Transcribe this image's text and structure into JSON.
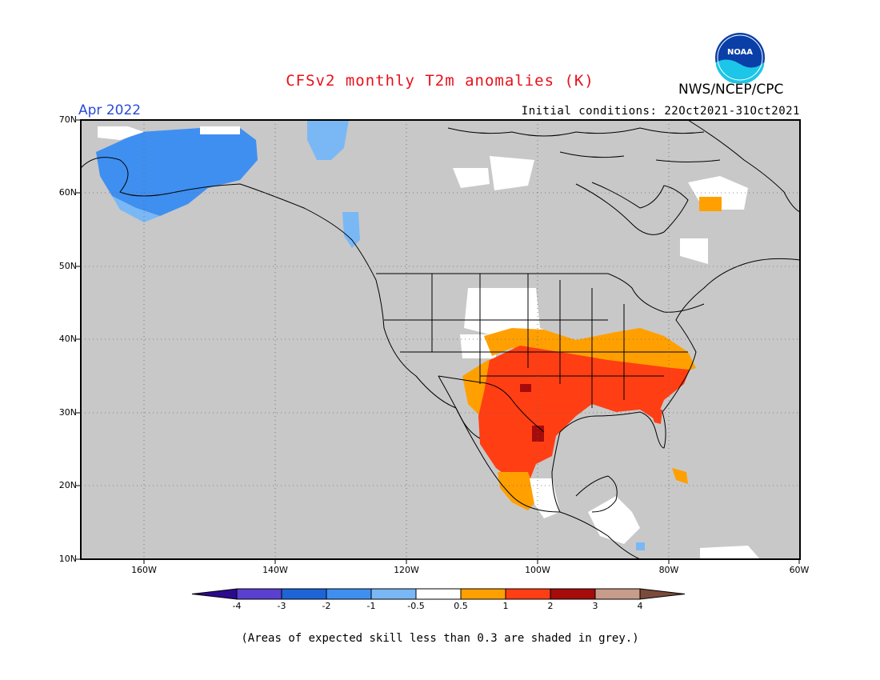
{
  "header": {
    "title": "CFSv2 monthly T2m anomalies (K)",
    "org": "NWS/NCEP/CPC",
    "logo_text": "NOAA",
    "month": "Apr 2022",
    "initial_conditions": "Initial conditions: 22Oct2021-31Oct2021"
  },
  "axes": {
    "lat_labels": [
      "70N",
      "60N",
      "50N",
      "40N",
      "30N",
      "20N",
      "10N"
    ],
    "lon_labels": [
      "160W",
      "140W",
      "120W",
      "100W",
      "80W",
      "60W"
    ]
  },
  "colorbar": {
    "labels": [
      "-4",
      "-3",
      "-2",
      "-1",
      "-0.5",
      "0.5",
      "1",
      "2",
      "3",
      "4"
    ],
    "colors": [
      "#2c0a8e",
      "#5a3fd0",
      "#1e64d6",
      "#3f8ff0",
      "#7ab8f5",
      "#ffffff",
      "#ffa000",
      "#ff3e14",
      "#a50b0b",
      "#c89c8a",
      "#7a4a3a"
    ]
  },
  "map": {
    "grey": "#c8c8c8",
    "skill_note": "(Areas of expected skill less than 0.3 are shaded in grey.)"
  }
}
